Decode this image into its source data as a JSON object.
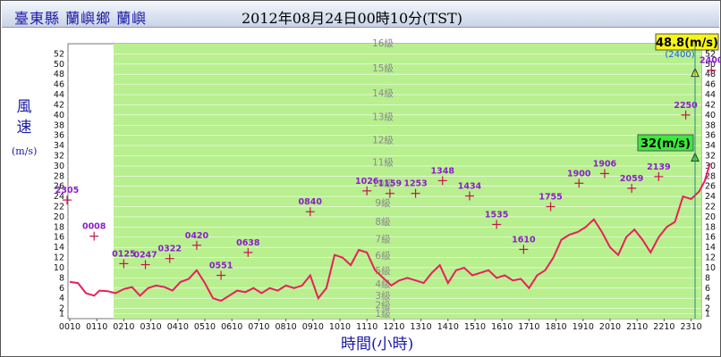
{
  "header": {
    "station": "臺東縣 蘭嶼鄉 蘭嶼",
    "datetime": "2012年08月24日00時10分(TST)"
  },
  "axes": {
    "ylabel_main": "風速",
    "ylabel_unit": "(m/s)",
    "xlabel": "時間(小時)"
  },
  "colors": {
    "plot_bg": "#b8ef8f",
    "line": "#e8205a",
    "marker": "#c4164a",
    "marker_label": "#8a1fc8",
    "gust_box": "#f5f518",
    "avg_box": "#3ee83e"
  },
  "chart_data": {
    "type": "line",
    "ylim": [
      0,
      54
    ],
    "y_ticks": [
      1,
      2,
      4,
      6,
      8,
      10,
      12,
      14,
      16,
      18,
      20,
      22,
      24,
      26,
      28,
      30,
      32,
      34,
      36,
      38,
      40,
      42,
      44,
      46,
      48,
      50,
      52
    ],
    "x_tick_labels": [
      "0010",
      "0110",
      "0210",
      "0310",
      "0410",
      "0510",
      "0610",
      "0710",
      "0810",
      "0910",
      "1010",
      "1110",
      "1210",
      "1310",
      "1410",
      "1510",
      "1610",
      "1710",
      "1810",
      "1910",
      "2010",
      "2110",
      "2210",
      "2310"
    ],
    "levels": [
      {
        "label": "1級",
        "y": 0.9
      },
      {
        "label": "2級",
        "y": 2.5
      },
      {
        "label": "3級",
        "y": 4.4
      },
      {
        "label": "4級",
        "y": 6.7
      },
      {
        "label": "5級",
        "y": 9.3
      },
      {
        "label": "6級",
        "y": 12.3
      },
      {
        "label": "7級",
        "y": 15.5
      },
      {
        "label": "8級",
        "y": 18.9
      },
      {
        "label": "9級",
        "y": 22.6
      },
      {
        "label": "10級",
        "y": 26.5
      },
      {
        "label": "11級",
        "y": 30.6
      },
      {
        "label": "12級",
        "y": 35.0
      },
      {
        "label": "13級",
        "y": 39.5
      },
      {
        "label": "14級",
        "y": 44.2
      },
      {
        "label": "15級",
        "y": 49.1
      },
      {
        "label": "16級",
        "y": 54.0
      }
    ],
    "series": [
      {
        "hours": [
          0,
          0.3,
          0.6,
          0.9,
          1.1,
          1.4,
          1.7,
          2.0,
          2.3,
          2.6,
          2.9,
          3.2,
          3.5,
          3.8,
          4.1,
          4.4,
          4.7,
          5.0,
          5.3,
          5.6,
          5.9,
          6.2,
          6.5,
          6.8,
          7.1,
          7.4,
          7.7,
          8.0,
          8.3,
          8.6,
          8.9,
          9.2,
          9.5,
          9.8,
          10.1,
          10.4,
          10.7,
          11.0,
          11.3,
          11.6,
          11.9,
          12.2,
          12.5,
          12.8,
          13.1,
          13.4,
          13.7,
          14.0,
          14.3,
          14.6,
          14.9,
          15.2,
          15.5,
          15.8,
          16.1,
          16.4,
          16.7,
          17.0,
          17.3,
          17.6,
          17.9,
          18.2,
          18.5,
          18.8,
          19.1,
          19.4,
          19.7,
          20.0,
          20.3,
          20.6,
          20.9,
          21.2,
          21.5,
          21.8,
          22.1,
          22.4,
          22.7,
          23.0,
          23.3,
          23.5,
          23.7
        ],
        "values": [
          7.2,
          7.0,
          5.0,
          4.5,
          5.5,
          5.4,
          5.0,
          5.8,
          6.2,
          4.5,
          6.0,
          6.5,
          6.2,
          5.5,
          7.2,
          7.8,
          9.5,
          7.0,
          4.0,
          3.5,
          4.5,
          5.5,
          5.2,
          6.0,
          5.0,
          6.0,
          5.5,
          6.5,
          6.0,
          6.5,
          8.5,
          4.0,
          6.0,
          12.5,
          12.0,
          10.5,
          13.5,
          13.0,
          9.5,
          8.0,
          6.5,
          7.5,
          8.0,
          7.5,
          7.0,
          9.0,
          10.5,
          7.0,
          9.5,
          10.0,
          8.5,
          9.0,
          9.5,
          8.0,
          8.5,
          7.5,
          7.8,
          6.0,
          8.5,
          9.5,
          12.0,
          15.5,
          16.5,
          17.0,
          18.0,
          19.5,
          17.0,
          14.0,
          12.5,
          16.0,
          17.5,
          15.5,
          13.0,
          16.0,
          18.0,
          19.0,
          24.0,
          23.5,
          25.0,
          27.0,
          30.5
        ]
      }
    ],
    "gust_points": [
      {
        "label": "2305",
        "hour": -0.1,
        "value": 23.3
      },
      {
        "label": "0008",
        "hour": 0.9,
        "value": 16.2
      },
      {
        "label": "0125",
        "hour": 2.0,
        "value": 10.8
      },
      {
        "label": "0247",
        "hour": 2.8,
        "value": 10.6
      },
      {
        "label": "0322",
        "hour": 3.7,
        "value": 11.8
      },
      {
        "label": "0420",
        "hour": 4.7,
        "value": 14.4
      },
      {
        "label": "0551",
        "hour": 5.6,
        "value": 8.5
      },
      {
        "label": "0638",
        "hour": 6.6,
        "value": 13.0
      },
      {
        "label": "0840",
        "hour": 8.9,
        "value": 21.0
      },
      {
        "label": "1026",
        "hour": 11.0,
        "value": 25.1
      },
      {
        "label": "1159",
        "hour": 11.85,
        "value": 24.6
      },
      {
        "label": "1253",
        "hour": 12.8,
        "value": 24.6
      },
      {
        "label": "1348",
        "hour": 13.8,
        "value": 27.1
      },
      {
        "label": "1434",
        "hour": 14.8,
        "value": 24.1
      },
      {
        "label": "1535",
        "hour": 15.8,
        "value": 18.5
      },
      {
        "label": "1610",
        "hour": 16.8,
        "value": 13.6
      },
      {
        "label": "1755",
        "hour": 17.8,
        "value": 22.0
      },
      {
        "label": "1900",
        "hour": 18.85,
        "value": 26.6
      },
      {
        "label": "1906",
        "hour": 19.8,
        "value": 28.5
      },
      {
        "label": "2059",
        "hour": 20.8,
        "value": 25.6
      },
      {
        "label": "2139",
        "hour": 21.8,
        "value": 27.9
      },
      {
        "label": "2250",
        "hour": 22.8,
        "value": 40.0
      },
      {
        "label": "2400",
        "hour": 23.75,
        "value": 48.8
      }
    ],
    "current": {
      "gust": "48.8(m/s)",
      "gust_value": 48.8,
      "gust_time": "(2400)",
      "avg": "32(m/s)",
      "avg_value": 32
    }
  }
}
